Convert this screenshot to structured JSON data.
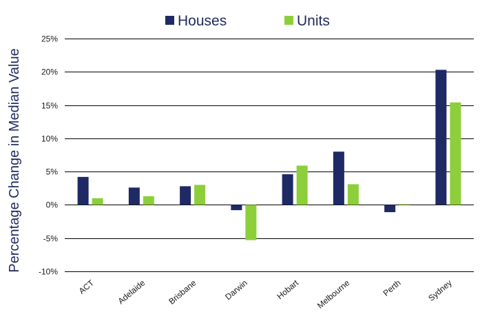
{
  "chart_data": {
    "type": "bar",
    "categories": [
      "ACT",
      "Adelaide",
      "Brisbane",
      "Darwin",
      "Hobart",
      "Melbourne",
      "Perth",
      "Sydney"
    ],
    "series": [
      {
        "name": "Houses",
        "color": "#1f2a64",
        "values": [
          4.2,
          2.6,
          2.8,
          -0.8,
          4.6,
          8.0,
          -1.1,
          20.3
        ]
      },
      {
        "name": "Units",
        "color": "#8ccf3a",
        "values": [
          1.0,
          1.3,
          3.0,
          -5.3,
          5.9,
          3.1,
          0.1,
          15.4
        ]
      }
    ],
    "title": "",
    "xlabel": "",
    "ylabel": "Percentage Change in Median Value",
    "ylim": [
      -10,
      25
    ],
    "yticks": [
      25,
      20,
      15,
      10,
      5,
      0,
      -5,
      -10
    ],
    "ytick_labels": [
      "25%",
      "20%",
      "15%",
      "10%",
      "5%",
      "0%",
      "-5%",
      "-10%"
    ],
    "grid": "horizontal",
    "legend_position": "top-center"
  }
}
